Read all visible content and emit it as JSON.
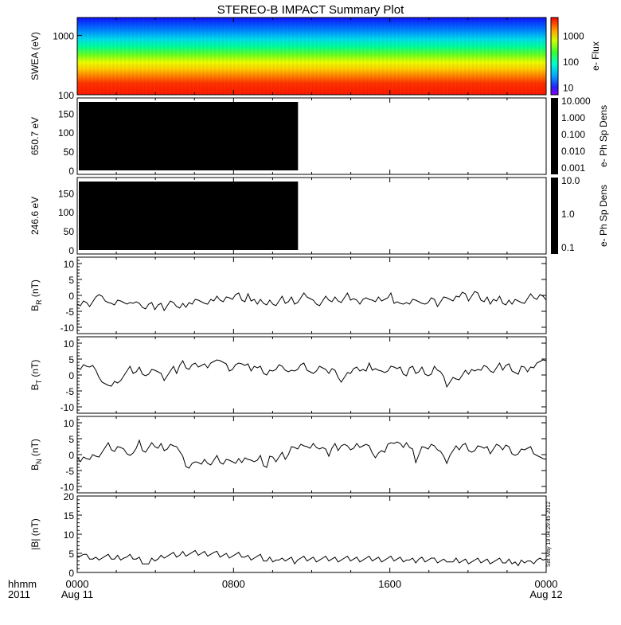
{
  "title": "STEREO-B IMPACT Summary Plot",
  "stamp": "Sat May 19 04:29:45 2012",
  "x_axis": {
    "corner_label": "hhmm",
    "corner_year": "2011",
    "ticks": [
      {
        "time": "0000",
        "date": "Aug 11",
        "hour": 0
      },
      {
        "time": "0800",
        "date": "",
        "hour": 8
      },
      {
        "time": "1600",
        "date": "",
        "hour": 16
      },
      {
        "time": "0000",
        "date": "Aug 12",
        "hour": 24
      }
    ],
    "range_hours": [
      0,
      24
    ]
  },
  "colors": {
    "spectrogram": [
      "#0000ff",
      "#00aaff",
      "#00ffaa",
      "#80ff00",
      "#ffff00",
      "#ffaa00",
      "#ff5500",
      "#ff0000"
    ],
    "fill_black": "#000000"
  },
  "chart_data": [
    {
      "type": "heatmap",
      "panel": "swea",
      "ylabel": "SWEA (eV)",
      "yscale": "log",
      "ylim": [
        100,
        2000
      ],
      "yticks": [
        "1000",
        "100"
      ],
      "colorbar": {
        "label": "e- Flux",
        "scale": "log",
        "ticks": [
          "1000",
          "100",
          "10"
        ],
        "range": [
          5,
          5000
        ]
      },
      "description_bands_eV": [
        {
          "from": 100,
          "to": 140,
          "level": "red"
        },
        {
          "from": 140,
          "to": 230,
          "level": "orange"
        },
        {
          "from": 230,
          "to": 320,
          "level": "yellow"
        },
        {
          "from": 320,
          "to": 450,
          "level": "green"
        },
        {
          "from": 450,
          "to": 800,
          "level": "cyan"
        },
        {
          "from": 800,
          "to": 2000,
          "level": "blue"
        }
      ]
    },
    {
      "type": "heatmap",
      "panel": "pad650",
      "ylabel": "650.7 eV",
      "ylim": [
        0,
        180
      ],
      "yticks": [
        "150",
        "100",
        "50",
        "0"
      ],
      "filled_until_hour": 11.3,
      "colorbar": {
        "label": "e- Ph Sp Dens",
        "scale": "log",
        "ticks": [
          "10.000",
          "1.000",
          "0.100",
          "0.010",
          "0.001"
        ]
      }
    },
    {
      "type": "heatmap",
      "panel": "pad246",
      "ylabel": "246.6 eV",
      "ylim": [
        0,
        180
      ],
      "yticks": [
        "150",
        "100",
        "50",
        "0"
      ],
      "filled_until_hour": 11.3,
      "colorbar": {
        "label": "e- Ph Sp Dens",
        "scale": "log",
        "ticks": [
          "10.0",
          "1.0",
          "0.1"
        ]
      }
    },
    {
      "type": "line",
      "panel": "br",
      "ylabel_main": "B",
      "ylabel_sub": "R",
      "ylabel_unit": " (nT)",
      "ylim": [
        -12,
        12
      ],
      "yticks": [
        10,
        5,
        0,
        -5,
        -10
      ],
      "x_hours_step": 0.25,
      "y": [
        -2,
        -3,
        -2,
        -3,
        -3,
        -2,
        -1,
        1,
        0,
        -2,
        -3,
        -2,
        -3,
        -2,
        -1,
        -2,
        -3,
        -3,
        -2,
        -2,
        -3,
        -3,
        -4,
        -3,
        -3,
        -4,
        -3,
        -3,
        -4,
        -3,
        -2,
        -3,
        -3,
        -4,
        -3,
        -3,
        -2,
        -3,
        -2,
        -1,
        -2,
        -3,
        -2,
        -1,
        -2,
        -1,
        -1,
        -2,
        -1,
        0,
        -1,
        0,
        0,
        -1,
        -2,
        0,
        -1,
        -1,
        -3,
        -2,
        -2,
        -3,
        -2,
        -2,
        -3,
        -2,
        -1,
        -2,
        -2,
        -1,
        -2,
        -2,
        -1,
        0,
        0,
        -1,
        -2,
        -2,
        -3,
        -2,
        -1,
        -1,
        -2,
        -1,
        -1,
        -2,
        -1,
        0,
        -1,
        -1,
        -2,
        -2,
        -1,
        -1,
        -2,
        -1,
        -2,
        -1,
        -1,
        -1
      ],
      "y2": [
        -1,
        0,
        -2,
        -2,
        -3,
        -2,
        -2,
        -3,
        -2,
        -1,
        -2,
        -3,
        -2,
        -2,
        -1,
        -2,
        -3,
        -2,
        -1,
        0,
        -1,
        -2,
        -1,
        0,
        1,
        0,
        -1,
        0,
        1,
        0,
        -1,
        -2,
        -1,
        -2,
        -1,
        -2,
        -1,
        -2,
        -3,
        -2,
        -2,
        -1,
        -2,
        -3,
        -2,
        -1,
        0,
        0,
        -1,
        0,
        -1,
        -1
      ]
    },
    {
      "type": "line",
      "panel": "bt",
      "ylabel_main": "B",
      "ylabel_sub": "T",
      "ylabel_unit": " (nT)",
      "ylim": [
        -12,
        12
      ],
      "yticks": [
        10,
        5,
        0,
        -5,
        -10
      ],
      "x_hours_step": 0.25,
      "y": [
        3,
        2,
        3,
        2,
        3,
        3,
        1,
        0,
        -2,
        -3,
        -4,
        -3,
        -2,
        -3,
        -1,
        0,
        1,
        2,
        1,
        1,
        2,
        1,
        0,
        0,
        1,
        2,
        1,
        0,
        -1,
        0,
        1,
        2,
        1,
        3,
        4,
        3,
        2,
        3,
        3,
        3,
        3,
        3,
        3,
        4,
        4,
        4,
        5,
        4,
        3,
        2,
        2,
        3,
        3,
        4,
        3,
        3,
        2,
        3,
        2,
        2,
        1,
        0,
        1,
        2,
        2,
        3,
        2,
        2,
        1,
        1,
        2,
        2,
        3,
        3,
        2,
        1,
        0,
        2,
        3,
        2,
        1,
        1,
        2,
        1,
        0,
        -2,
        -1,
        0,
        1,
        2,
        2,
        2,
        2,
        1,
        3,
        2,
        2,
        1,
        2,
        1
      ],
      "y2": [
        1,
        2,
        3,
        2,
        2,
        1,
        0,
        2,
        2,
        1,
        1,
        2,
        1,
        0,
        0,
        2,
        2,
        1,
        -1,
        -3,
        -2,
        -1,
        -2,
        -1,
        0,
        1,
        1,
        2,
        1,
        1,
        2,
        3,
        2,
        2,
        1,
        2,
        3,
        2,
        3,
        3,
        2,
        1,
        0,
        2,
        3,
        1,
        2,
        3,
        4,
        4,
        4,
        5
      ]
    },
    {
      "type": "line",
      "panel": "bn",
      "ylabel_main": "B",
      "ylabel_sub": "N",
      "ylabel_unit": " (nT)",
      "ylim": [
        -12,
        12
      ],
      "yticks": [
        10,
        5,
        0,
        -5,
        -10
      ],
      "x_hours_step": 0.25,
      "y": [
        0,
        -2,
        -1,
        -2,
        -1,
        0,
        -1,
        0,
        1,
        2,
        3,
        2,
        1,
        2,
        3,
        2,
        0,
        -1,
        1,
        2,
        4,
        2,
        1,
        2,
        3,
        3,
        2,
        3,
        2,
        2,
        3,
        2,
        3,
        1,
        -1,
        -3,
        -4,
        -3,
        -3,
        -2,
        -3,
        -2,
        -2,
        -3,
        -2,
        -1,
        -2,
        -3,
        -2,
        -1,
        -2,
        -3,
        -2,
        -2,
        -1,
        -2,
        -1,
        -2,
        -2,
        -1,
        -3,
        -4,
        -1,
        0,
        -2,
        -1,
        0,
        -1,
        0,
        2,
        3,
        2,
        3,
        2,
        3,
        2,
        3,
        3,
        2,
        2,
        1,
        0,
        2,
        3,
        2,
        3,
        3,
        2,
        2,
        2,
        3,
        3,
        3,
        3,
        2,
        1,
        -1,
        0,
        2,
        1
      ],
      "y2": [
        3,
        3,
        4,
        4,
        3,
        3,
        4,
        2,
        1,
        -2,
        0,
        2,
        3,
        2,
        3,
        2,
        2,
        1,
        -1,
        -2,
        0,
        1,
        2,
        2,
        3,
        3,
        2,
        1,
        1,
        2,
        3,
        2,
        2,
        1,
        2,
        3,
        2,
        2,
        3,
        2,
        1,
        0,
        0,
        1,
        2,
        2,
        2,
        1,
        0,
        -1,
        -2,
        -1
      ]
    },
    {
      "type": "line",
      "panel": "bmag",
      "ylabel": "|B| (nT)",
      "ylim": [
        0,
        20
      ],
      "yticks": [
        20,
        15,
        10,
        5,
        0
      ],
      "x_hours_step": 0.25,
      "y": [
        5,
        4.5,
        4.5,
        4,
        4,
        3.5,
        3.5,
        4,
        4,
        4,
        4,
        4,
        3.5,
        4,
        4,
        4,
        3.8,
        4,
        4,
        3.5,
        3.5,
        3,
        2.5,
        2,
        3,
        3.5,
        3.5,
        4,
        4.5,
        4.5,
        4.5,
        4.5,
        4.5,
        4.5,
        5,
        5,
        5,
        5,
        5,
        5,
        5,
        5,
        5,
        5,
        5,
        4.8,
        4.5,
        4.5,
        4.5,
        4.5,
        4.5,
        4.5,
        4.5,
        4.5,
        4,
        4,
        4,
        4,
        4,
        4,
        3.5,
        3,
        3.5,
        3.5,
        3.5,
        3,
        3,
        3.5,
        3.5,
        3.5,
        3,
        3.5,
        3.5,
        3.5,
        3.5,
        3.5,
        3.5,
        3.5,
        3.5,
        3.5,
        3.5,
        3.5,
        3.5,
        3.5,
        3.5,
        3.5,
        3.5,
        3.5,
        3.5,
        3.5,
        3.5,
        3.5,
        3.5,
        3.5,
        3.5,
        3.5,
        3.5,
        3.5,
        3.5,
        3.5
      ],
      "y2": [
        3.5,
        3.5,
        3.5,
        3.5,
        3.5,
        3.5,
        3.5,
        3,
        3,
        3,
        3.5,
        3.5,
        3.5,
        3.5,
        3.5,
        3,
        3,
        3,
        3,
        3.5,
        3,
        2.5,
        3,
        3,
        3,
        3,
        3,
        3,
        3,
        3,
        3,
        3,
        3,
        3,
        3,
        3,
        3,
        3,
        2.5,
        3,
        3,
        3,
        1.5,
        2.5,
        3,
        3,
        2.5,
        3,
        3.5,
        3.5,
        2.5,
        4
      ]
    }
  ]
}
